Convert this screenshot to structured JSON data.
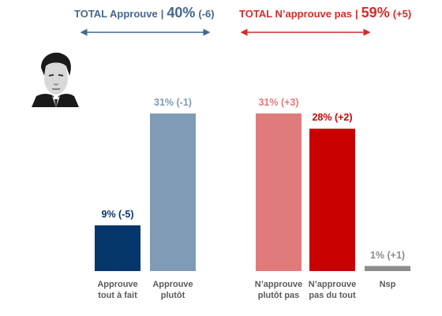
{
  "header": {
    "approve": {
      "label": "TOTAL Approuve",
      "separator": "|",
      "value": "40%",
      "change": "(-6)"
    },
    "disapprove": {
      "label": "TOTAL N’approuve pas",
      "separator": "|",
      "value": "59%",
      "change": "(+5)"
    }
  },
  "colors": {
    "approve_total": "#44688f",
    "disapprove_total": "#d42b2b"
  },
  "portrait": {
    "icon": "person-portrait-icon"
  },
  "chart_data": {
    "type": "bar",
    "ylim": [
      0,
      35
    ],
    "grid": false,
    "bars": [
      {
        "category": [
          "Approuve",
          "tout à fait"
        ],
        "value": 9,
        "label": "9% (-5)",
        "color": "#04366b",
        "label_color": "#04366b"
      },
      {
        "category": [
          "Approuve",
          "plutôt"
        ],
        "value": 31,
        "label": "31% (-1)",
        "color": "#7f9bb6",
        "label_color": "#7f9bb6"
      },
      {
        "category": [
          "N’approuve",
          "plutôt pas"
        ],
        "value": 31,
        "label": "31% (+3)",
        "color": "#e07b7b",
        "label_color": "#e07b7b"
      },
      {
        "category": [
          "N’approuve",
          "pas du tout"
        ],
        "value": 28,
        "label": "28% (+2)",
        "color": "#c80000",
        "label_color": "#c80000"
      },
      {
        "category": [
          "Nsp"
        ],
        "value": 1,
        "label": "1% (+1)",
        "color": "#8c8c8c",
        "label_color": "#8c8c8c"
      }
    ]
  }
}
